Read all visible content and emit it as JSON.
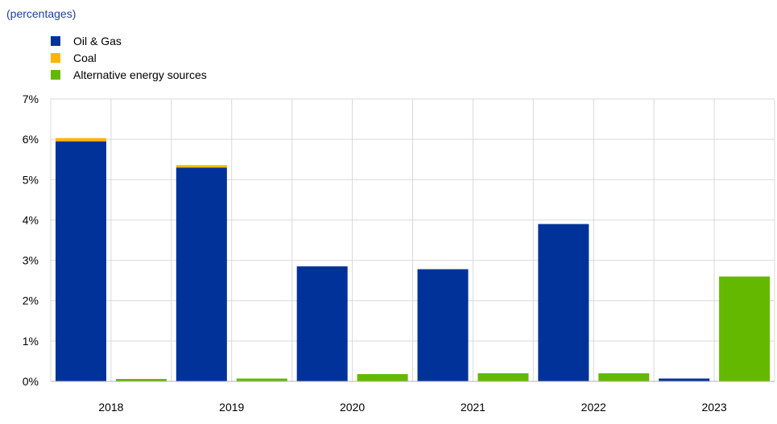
{
  "subtitle": "(percentages)",
  "chart_data": {
    "type": "bar",
    "categories": [
      "2018",
      "2019",
      "2020",
      "2021",
      "2022",
      "2023"
    ],
    "series": [
      {
        "name": "Oil & Gas",
        "color": "#003299",
        "stack": "fossil",
        "values": [
          5.95,
          5.3,
          2.85,
          2.78,
          3.9,
          0.07
        ]
      },
      {
        "name": "Coal",
        "color": "#ffb400",
        "stack": "fossil",
        "values": [
          0.08,
          0.06,
          0,
          0,
          0,
          0
        ]
      },
      {
        "name": "Alternative energy sources",
        "color": "#65b800",
        "stack": "alternative",
        "values": [
          0.06,
          0.07,
          0.18,
          0.2,
          0.2,
          2.6
        ]
      }
    ],
    "ylim": [
      0,
      7
    ],
    "yticks": [
      0,
      1,
      2,
      3,
      4,
      5,
      6,
      7
    ],
    "ytick_labels": [
      "0%",
      "1%",
      "2%",
      "3%",
      "4%",
      "5%",
      "6%",
      "7%"
    ],
    "grid": true,
    "legend_position": "top-left"
  }
}
